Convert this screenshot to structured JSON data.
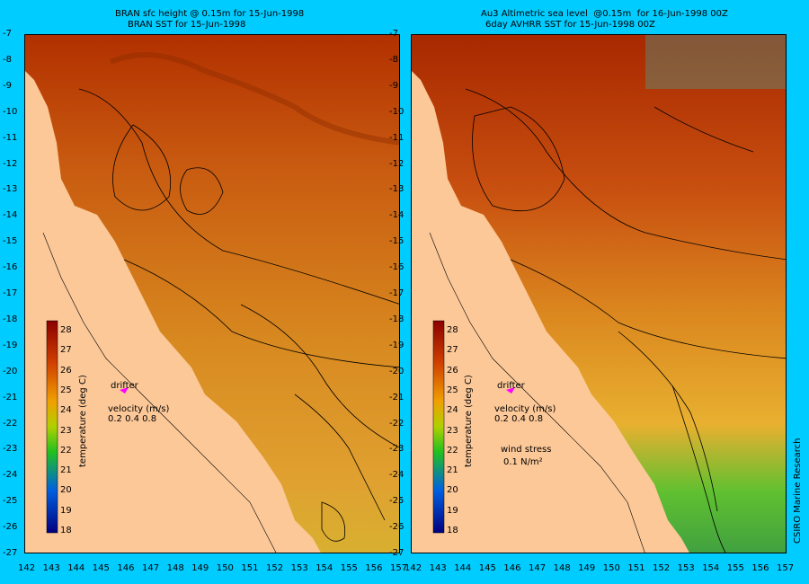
{
  "left_panel": {
    "title_line1": "BRAN sfc height @ 0.15m for 15-Jun-1998",
    "title_line2": "BRAN SST for 15-Jun-1998",
    "drifter_label": "drifter",
    "velocity_label": "velocity (m/s)",
    "velocity_values": "0.2 0.4 0.8",
    "colorbar_title": "temperature (deg C)"
  },
  "right_panel": {
    "title_line1": "Au3 Altimetric sea level  @0.15m  for 16-Jun-1998 00Z",
    "title_line2": "6day AVHRR SST for 15-Jun-1998 00Z",
    "drifter_label": "drifter",
    "velocity_label": "velocity (m/s)",
    "velocity_values": "0.2 0.4 0.8",
    "wind_label": "wind stress",
    "wind_value": "0.1 N/m²",
    "colorbar_title": "temperature (deg C)"
  },
  "colorbar_ticks": [
    "28",
    "27",
    "26",
    "25",
    "24",
    "23",
    "22",
    "21",
    "20",
    "19",
    "18"
  ],
  "lat_ticks": [
    "-7",
    "-8",
    "-9",
    "-10",
    "-11",
    "-12",
    "-13",
    "-14",
    "-15",
    "-16",
    "-17",
    "-18",
    "-19",
    "-20",
    "-21",
    "-22",
    "-23",
    "-24",
    "-25",
    "-26",
    "-27"
  ],
  "lon_ticks": [
    "142",
    "143",
    "144",
    "145",
    "146",
    "147",
    "148",
    "149",
    "150",
    "151",
    "152",
    "153",
    "154",
    "155",
    "156",
    "157"
  ],
  "credit": "CSIRO Marine Research",
  "colors": {
    "background": "#00ccff",
    "land": "#fcc898",
    "drifter": "#ff00ff"
  }
}
